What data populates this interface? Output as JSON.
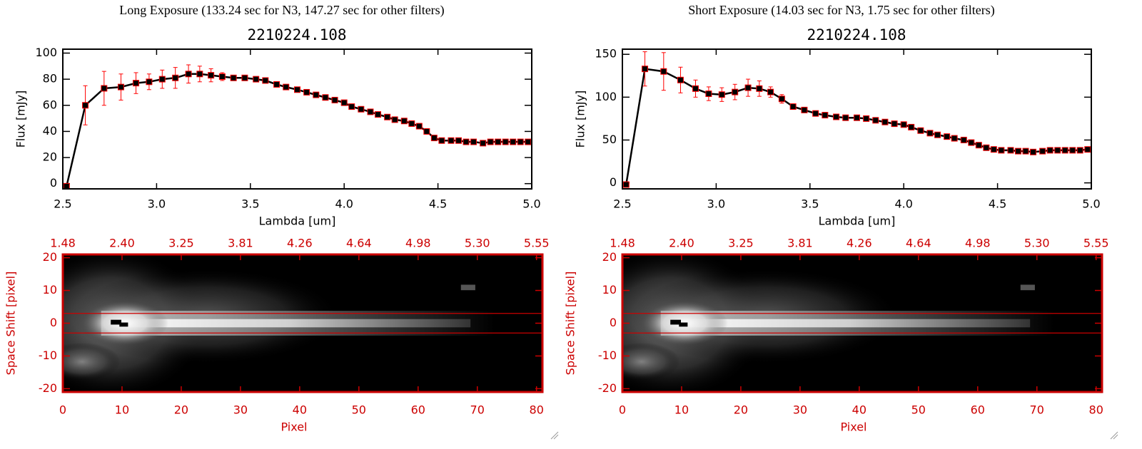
{
  "chart_data": [
    {
      "type": "line",
      "title": "Long Exposure (133.24 sec for N3, 147.27 sec for other filters)",
      "subtitle": "2210224.108",
      "xlabel": "Lambda [um]",
      "ylabel": "Flux [mJy]",
      "x": [
        2.52,
        2.62,
        2.72,
        2.81,
        2.89,
        2.96,
        3.03,
        3.1,
        3.17,
        3.23,
        3.29,
        3.35,
        3.41,
        3.47,
        3.53,
        3.58,
        3.64,
        3.69,
        3.75,
        3.8,
        3.85,
        3.9,
        3.95,
        4.0,
        4.04,
        4.09,
        4.14,
        4.18,
        4.23,
        4.27,
        4.32,
        4.36,
        4.4,
        4.44,
        4.48,
        4.52,
        4.57,
        4.61,
        4.65,
        4.69,
        4.74,
        4.78,
        4.82,
        4.86,
        4.9,
        4.94,
        4.98
      ],
      "values": [
        -2,
        60,
        73,
        74,
        77,
        78,
        80,
        81,
        84,
        84,
        83,
        82,
        81,
        81,
        80,
        79,
        76,
        74,
        72,
        70,
        68,
        66,
        64,
        62,
        59,
        57,
        55,
        53,
        51,
        49,
        48,
        46,
        44,
        40,
        35,
        33,
        33,
        33,
        32,
        32,
        31,
        32,
        32,
        32,
        32,
        32,
        32
      ],
      "errors": [
        0,
        15,
        13,
        10,
        8,
        6,
        7,
        8,
        7,
        6,
        5,
        3,
        2,
        1,
        1,
        1,
        1,
        1,
        1,
        1,
        1,
        1,
        1,
        1,
        1,
        1,
        1,
        1,
        1,
        1,
        1,
        1,
        1,
        1,
        1,
        1,
        1,
        1,
        1,
        1,
        1,
        1,
        1,
        1,
        1,
        1,
        1
      ],
      "color": "#000000",
      "error_color": "#ff0000",
      "xlim": [
        2.5,
        5.0
      ],
      "xticks": [
        2.5,
        {
          "value": 3,
          "label": "3.0"
        },
        3.5,
        {
          "value": 4,
          "label": "4.0"
        },
        4.5,
        {
          "value": 5,
          "label": "5.0"
        }
      ],
      "ylim": [
        -4,
        103
      ],
      "yticks": [
        0,
        20,
        40,
        60,
        80,
        100
      ]
    },
    {
      "type": "image",
      "xlabel": "Pixel",
      "ylabel": "Space Shift [pixel]",
      "xlim": [
        0,
        81
      ],
      "xticks": [
        0,
        10,
        20,
        30,
        40,
        50,
        60,
        70,
        80
      ],
      "x2ticks": [
        {
          "value": 0,
          "label": "1.48"
        },
        {
          "value": 10,
          "label": "2.40"
        },
        {
          "value": 20,
          "label": "3.25"
        },
        {
          "value": 30,
          "label": "3.81"
        },
        {
          "value": 40,
          "label": "4.26"
        },
        {
          "value": 50,
          "label": "4.64"
        },
        {
          "value": 60,
          "label": "4.98"
        },
        {
          "value": 70,
          "label": "5.30"
        },
        {
          "value": 80,
          "label": "5.55"
        }
      ],
      "ylim": [
        -21,
        21
      ],
      "yticks": [
        -20,
        -10,
        0,
        10,
        20
      ],
      "hlines": [
        3,
        -3
      ],
      "axis_color": "#cc0000"
    },
    {
      "type": "line",
      "title": "Short Exposure (14.03 sec for N3, 1.75 sec for other filters)",
      "subtitle": "2210224.108",
      "xlabel": "Lambda [um]",
      "ylabel": "Flux [mJy]",
      "x": [
        2.52,
        2.62,
        2.72,
        2.81,
        2.89,
        2.96,
        3.03,
        3.1,
        3.17,
        3.23,
        3.29,
        3.35,
        3.41,
        3.47,
        3.53,
        3.58,
        3.64,
        3.69,
        3.75,
        3.8,
        3.85,
        3.9,
        3.95,
        4.0,
        4.04,
        4.09,
        4.14,
        4.18,
        4.23,
        4.27,
        4.32,
        4.36,
        4.4,
        4.44,
        4.48,
        4.52,
        4.57,
        4.61,
        4.65,
        4.69,
        4.74,
        4.78,
        4.82,
        4.86,
        4.9,
        4.94,
        4.98
      ],
      "values": [
        -2,
        133,
        130,
        120,
        110,
        104,
        103,
        106,
        111,
        110,
        106,
        98,
        89,
        85,
        81,
        79,
        77,
        76,
        76,
        75,
        73,
        71,
        69,
        68,
        65,
        61,
        58,
        56,
        54,
        52,
        50,
        47,
        44,
        41,
        39,
        38,
        38,
        37,
        37,
        36,
        37,
        38,
        38,
        38,
        38,
        38,
        39
      ],
      "errors": [
        0,
        20,
        22,
        15,
        10,
        8,
        8,
        9,
        10,
        9,
        6,
        5,
        3,
        2,
        2,
        1,
        1,
        1,
        1,
        1,
        1,
        1,
        1,
        1,
        1,
        1,
        1,
        1,
        1,
        1,
        1,
        1,
        1,
        1,
        1,
        1,
        1,
        1,
        1,
        1,
        1,
        1,
        1,
        1,
        1,
        1,
        1
      ],
      "color": "#000000",
      "error_color": "#ff0000",
      "xlim": [
        2.5,
        5.0
      ],
      "xticks": [
        2.5,
        {
          "value": 3,
          "label": "3.0"
        },
        3.5,
        {
          "value": 4,
          "label": "4.0"
        },
        4.5,
        {
          "value": 5,
          "label": "5.0"
        }
      ],
      "ylim": [
        -7,
        156
      ],
      "yticks": [
        0,
        50,
        100,
        150
      ]
    },
    {
      "type": "image",
      "xlabel": "Pixel",
      "ylabel": "Space Shift [pixel]",
      "xlim": [
        0,
        81
      ],
      "xticks": [
        0,
        10,
        20,
        30,
        40,
        50,
        60,
        70,
        80
      ],
      "x2ticks": [
        {
          "value": 0,
          "label": "1.48"
        },
        {
          "value": 10,
          "label": "2.40"
        },
        {
          "value": 20,
          "label": "3.25"
        },
        {
          "value": 30,
          "label": "3.81"
        },
        {
          "value": 40,
          "label": "4.26"
        },
        {
          "value": 50,
          "label": "4.64"
        },
        {
          "value": 60,
          "label": "4.98"
        },
        {
          "value": 70,
          "label": "5.30"
        },
        {
          "value": 80,
          "label": "5.55"
        }
      ],
      "ylim": [
        -21,
        21
      ],
      "yticks": [
        -20,
        -10,
        0,
        10,
        20
      ],
      "hlines": [
        3,
        -3
      ],
      "axis_color": "#cc0000"
    }
  ]
}
